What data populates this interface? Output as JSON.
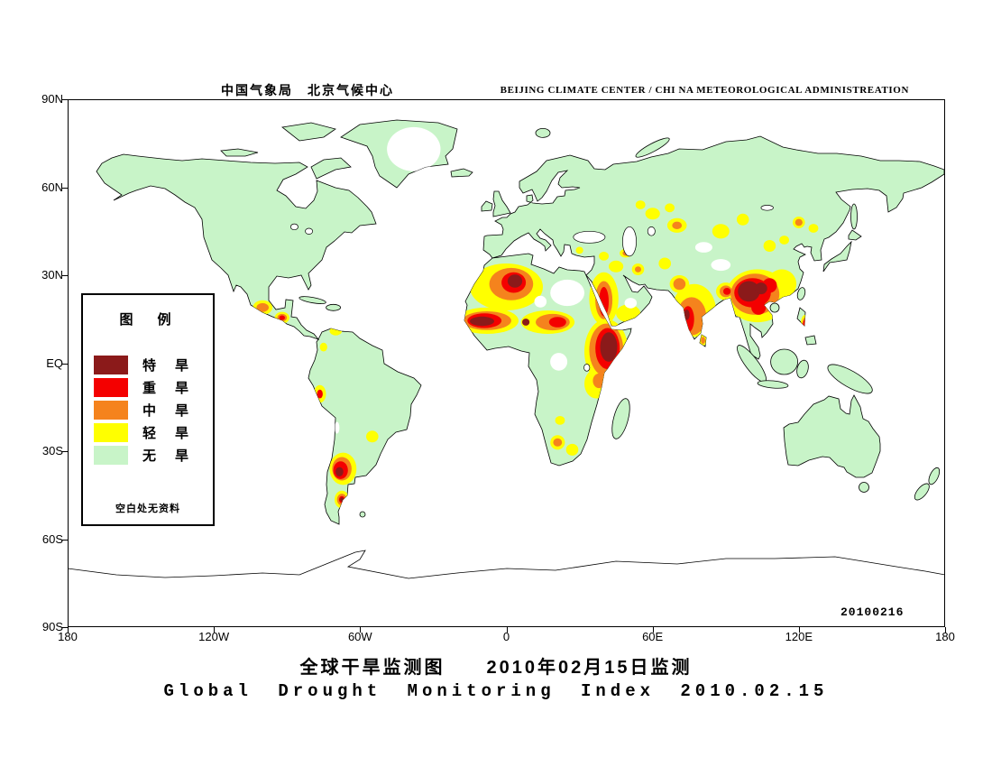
{
  "header": {
    "cn_title": "中国气象局　北京气候中心",
    "en_title": "BEIJING CLIMATE CENTER / CHI NA METEOROLOGICAL ADMINISTREATION"
  },
  "titles": {
    "cn": "全球干旱监测图　　2010年02月15日监测",
    "en": "Global Drought Monitoring Index 2010.02.15"
  },
  "legend": {
    "title": "图　例",
    "note": "空白处无资料",
    "items": [
      {
        "label": "特　旱",
        "level": "extreme"
      },
      {
        "label": "重　旱",
        "level": "severe"
      },
      {
        "label": "中　旱",
        "level": "moderate"
      },
      {
        "label": "轻　旱",
        "level": "light"
      },
      {
        "label": "无　旱",
        "level": "none"
      }
    ]
  },
  "colors": {
    "extreme": "#8b1a1a",
    "severe": "#f40000",
    "moderate": "#f5831d",
    "light": "#ffff00",
    "none": "#c8f4c8",
    "nodata": "#ffffff",
    "water": "#ffffff",
    "coastline": "#000000"
  },
  "axes": {
    "lat_ticks": [
      {
        "label": "90N",
        "lat": 90
      },
      {
        "label": "60N",
        "lat": 60
      },
      {
        "label": "30N",
        "lat": 30
      },
      {
        "label": "EQ",
        "lat": 0
      },
      {
        "label": "30S",
        "lat": -30
      },
      {
        "label": "60S",
        "lat": -60
      },
      {
        "label": "90S",
        "lat": -90
      }
    ],
    "lon_ticks": [
      {
        "label": "180",
        "lon": -180
      },
      {
        "label": "120W",
        "lon": -120
      },
      {
        "label": "60W",
        "lon": -60
      },
      {
        "label": "0",
        "lon": 0
      },
      {
        "label": "60E",
        "lon": 60
      },
      {
        "label": "120E",
        "lon": 120
      },
      {
        "label": "180",
        "lon": 180
      }
    ]
  },
  "map": {
    "datestamp": "20100216",
    "drought_regions": {
      "light": [
        [
          0,
          26,
          15,
          8
        ],
        [
          -8,
          14.5,
          13,
          4.5
        ],
        [
          17,
          14,
          11,
          4
        ],
        [
          41,
          4,
          9,
          11
        ],
        [
          37,
          -7,
          5,
          5
        ],
        [
          40,
          22,
          6,
          9
        ],
        [
          50,
          17,
          5,
          3
        ],
        [
          45,
          33,
          3,
          2
        ],
        [
          54,
          32,
          2.5,
          2
        ],
        [
          77,
          18,
          9,
          9
        ],
        [
          71,
          27,
          4,
          3
        ],
        [
          90,
          24.5,
          4,
          3
        ],
        [
          80.7,
          8,
          1.5,
          2
        ],
        [
          103,
          23,
          13,
          9
        ],
        [
          113,
          27,
          6,
          5
        ],
        [
          70,
          47,
          4,
          2.5
        ],
        [
          60,
          51,
          3,
          2
        ],
        [
          88,
          45,
          3.5,
          2.5
        ],
        [
          97,
          49,
          2.5,
          2
        ],
        [
          55,
          54,
          2,
          1.5
        ],
        [
          67,
          53,
          2,
          1.5
        ],
        [
          108,
          40,
          2.5,
          2
        ],
        [
          114,
          42,
          2,
          1.5
        ],
        [
          120,
          48,
          2.5,
          2
        ],
        [
          126,
          46,
          2,
          1.5
        ],
        [
          30,
          38.5,
          1.5,
          1.2
        ],
        [
          40,
          36.5,
          2,
          1.5
        ],
        [
          49,
          37.5,
          2.5,
          1.5
        ],
        [
          65,
          34,
          2.5,
          2
        ],
        [
          -100,
          19,
          4,
          2.5
        ],
        [
          -92,
          15.5,
          3,
          2
        ],
        [
          -70,
          11,
          2.5,
          1.5
        ],
        [
          -75,
          5.5,
          1.5,
          1.5
        ],
        [
          -76.5,
          -10.5,
          2.5,
          3
        ],
        [
          -55,
          -25,
          2.5,
          2
        ],
        [
          -67,
          -36,
          5.5,
          5.5
        ],
        [
          -67.5,
          -46.5,
          3,
          3
        ],
        [
          21,
          -27,
          3,
          2.5
        ],
        [
          27,
          -29.5,
          2.5,
          2
        ],
        [
          22,
          -19.5,
          2,
          1.5
        ],
        [
          122.5,
          13,
          1.8,
          3.5
        ]
      ],
      "moderate": [
        [
          2,
          27,
          9,
          5.5
        ],
        [
          -8,
          14.5,
          10,
          3.2
        ],
        [
          19,
          14,
          7,
          2.8
        ],
        [
          41,
          4.5,
          7,
          9
        ],
        [
          40,
          21.5,
          3.5,
          6.5
        ],
        [
          76,
          16,
          6,
          6.5
        ],
        [
          71,
          27,
          2.5,
          2
        ],
        [
          90,
          24.5,
          2.5,
          2
        ],
        [
          102,
          23.5,
          10,
          7
        ],
        [
          -100,
          19,
          2.5,
          1.5
        ],
        [
          -92,
          15.5,
          2,
          1.3
        ],
        [
          -67.5,
          -36,
          4,
          4
        ],
        [
          -67.5,
          -46.5,
          2,
          2
        ],
        [
          21,
          -27,
          1.8,
          1.4
        ],
        [
          122.5,
          13,
          1.2,
          2.5
        ],
        [
          70,
          47,
          2,
          1.3
        ],
        [
          120,
          48,
          1.5,
          1.2
        ],
        [
          49,
          37.5,
          1.3,
          0.9
        ],
        [
          54,
          32,
          1.3,
          1
        ],
        [
          38,
          -6,
          2.5,
          2.5
        ],
        [
          80.7,
          7.8,
          0.9,
          1.2
        ]
      ],
      "severe": [
        [
          -9,
          14.5,
          7,
          2.5
        ],
        [
          3,
          27.5,
          5,
          3.5
        ],
        [
          21,
          14,
          3.5,
          1.8
        ],
        [
          41.5,
          5,
          5,
          7
        ],
        [
          40,
          21,
          2,
          5
        ],
        [
          74.5,
          15,
          2.5,
          4.5
        ],
        [
          101,
          24,
          7.5,
          5
        ],
        [
          103.5,
          19,
          3,
          2.5
        ],
        [
          108,
          26.5,
          3,
          2.5
        ],
        [
          122.5,
          13,
          0.8,
          1.8
        ],
        [
          -68,
          -36.5,
          3,
          3
        ],
        [
          -67.5,
          -46.5,
          1.2,
          1.2
        ],
        [
          -92,
          15.5,
          1.2,
          0.8
        ],
        [
          -76.5,
          -10.5,
          1.2,
          1.5
        ],
        [
          90.5,
          24.5,
          1.5,
          1.2
        ]
      ],
      "extreme": [
        [
          -10,
          14.3,
          5,
          1.6
        ],
        [
          8,
          14,
          1.5,
          1.2
        ],
        [
          3.5,
          28,
          3,
          2.2
        ],
        [
          42,
          5.5,
          3.5,
          5
        ],
        [
          99.5,
          24.5,
          4.5,
          3.5
        ],
        [
          104.5,
          25.5,
          2.5,
          2
        ],
        [
          74,
          16.5,
          1.2,
          1.8
        ],
        [
          -68.5,
          -37,
          1.6,
          1.6
        ],
        [
          -67.5,
          -46.5,
          0.7,
          0.7
        ]
      ]
    },
    "no_data_patches": [
      [
        -38,
        73,
        11,
        7.5
      ],
      [
        25,
        24,
        7,
        4.5
      ],
      [
        14,
        21,
        2.5,
        2
      ],
      [
        51,
        20.5,
        2.5,
        1.8
      ],
      [
        21.5,
        0.5,
        3.5,
        3
      ],
      [
        81,
        39.5,
        3.5,
        1.8
      ],
      [
        88,
        33.5,
        4,
        2
      ],
      [
        -69.5,
        -22,
        1,
        2
      ]
    ],
    "lakes": [
      [
        34,
        43,
        6.5,
        2
      ],
      [
        50.5,
        41.5,
        2.8,
        5
      ],
      [
        59.5,
        45,
        1.5,
        1.5
      ],
      [
        -87,
        46.5,
        1.5,
        1
      ],
      [
        -81,
        45,
        1.5,
        1
      ],
      [
        107,
        53,
        2.5,
        0.9
      ],
      [
        33,
        -1.5,
        1.2,
        1.2
      ]
    ]
  }
}
